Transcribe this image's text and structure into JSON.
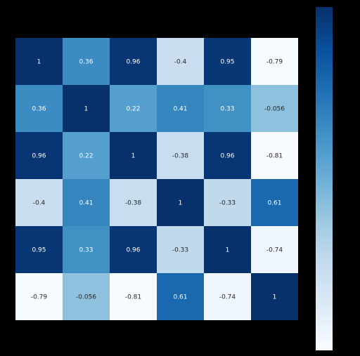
{
  "chart_data": {
    "type": "heatmap",
    "title": "",
    "xlabel": "",
    "ylabel": "",
    "row_labels": [
      "",
      "",
      "",
      "",
      "",
      ""
    ],
    "col_labels": [
      "",
      "",
      "",
      "",
      "",
      ""
    ],
    "matrix": [
      [
        1,
        0.36,
        0.96,
        -0.4,
        0.95,
        -0.79
      ],
      [
        0.36,
        1,
        0.22,
        0.41,
        0.33,
        -0.056
      ],
      [
        0.96,
        0.22,
        1,
        -0.38,
        0.96,
        -0.81
      ],
      [
        -0.4,
        0.41,
        -0.38,
        1,
        -0.33,
        0.61
      ],
      [
        0.95,
        0.33,
        0.96,
        -0.33,
        1,
        -0.74
      ],
      [
        -0.79,
        -0.056,
        -0.81,
        0.61,
        -0.74,
        1
      ]
    ],
    "value_labels": [
      [
        "1",
        "0.36",
        "0.96",
        "-0.4",
        "0.95",
        "-0.79"
      ],
      [
        "0.36",
        "1",
        "0.22",
        "0.41",
        "0.33",
        "-0.056"
      ],
      [
        "0.96",
        "0.22",
        "1",
        "-0.38",
        "0.96",
        "-0.81"
      ],
      [
        "-0.4",
        "0.41",
        "-0.38",
        "1",
        "-0.33",
        "0.61"
      ],
      [
        "0.95",
        "0.33",
        "0.96",
        "-0.33",
        "1",
        "-0.74"
      ],
      [
        "-0.79",
        "-0.056",
        "-0.81",
        "0.61",
        "-0.74",
        "1"
      ]
    ],
    "colormap": "Blues",
    "color_range": [
      -0.81,
      1
    ],
    "colorbar": true,
    "background_color": "#000000",
    "dark_text_color": "#262626",
    "light_text_color": "#ffffff"
  }
}
